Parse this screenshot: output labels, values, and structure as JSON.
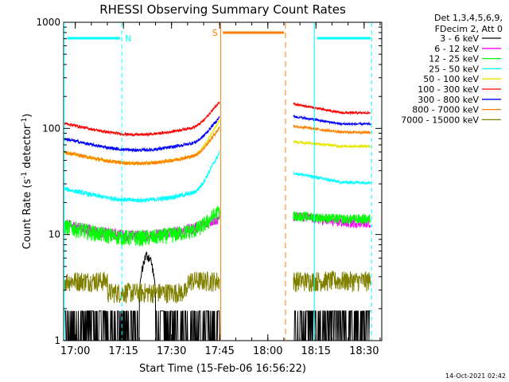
{
  "chart_data": {
    "type": "line",
    "title": "RHESSI Observing Summary Count Rates",
    "xlabel": "Start Time (15-Feb-06 16:56:22)",
    "ylabel_main": "Count Rate (s",
    "ylabel_sup1": "-1",
    "ylabel_mid": " detector",
    "ylabel_sup2": "-1",
    "ylabel_end": ")",
    "y_scale": "log",
    "ylim": [
      1,
      1000
    ],
    "xlim": [
      "16:56:22",
      "18:35:30"
    ],
    "x_ticks": [
      "17:00",
      "17:15",
      "17:30",
      "17:45",
      "18:00",
      "18:15",
      "18:30"
    ],
    "y_ticks": [
      "1",
      "10",
      "100",
      "1000"
    ],
    "legend_header": [
      "Det 1,3,4,5,6,9,",
      "FDecim 2, Att 0"
    ],
    "legend_position": "right",
    "series": [
      {
        "name": "3 - 6 keV",
        "color": "#000000"
      },
      {
        "name": "6 - 12 keV",
        "color": "#ff00ff"
      },
      {
        "name": "12 - 25 keV",
        "color": "#00ff00"
      },
      {
        "name": "25 - 50 keV",
        "color": "#00ffff"
      },
      {
        "name": "50 - 100 keV",
        "color": "#e6e600"
      },
      {
        "name": "100 - 300 keV",
        "color": "#ff0000"
      },
      {
        "name": "300 - 800 keV",
        "color": "#0000ff"
      },
      {
        "name": "800 - 7000 keV",
        "color": "#ff8000"
      },
      {
        "name": "7000 - 15000 keV",
        "color": "#808000"
      }
    ],
    "annotations": {
      "night_label": "N",
      "saa_label": "S"
    },
    "timestamp": "14-Oct-2021 02:42"
  }
}
